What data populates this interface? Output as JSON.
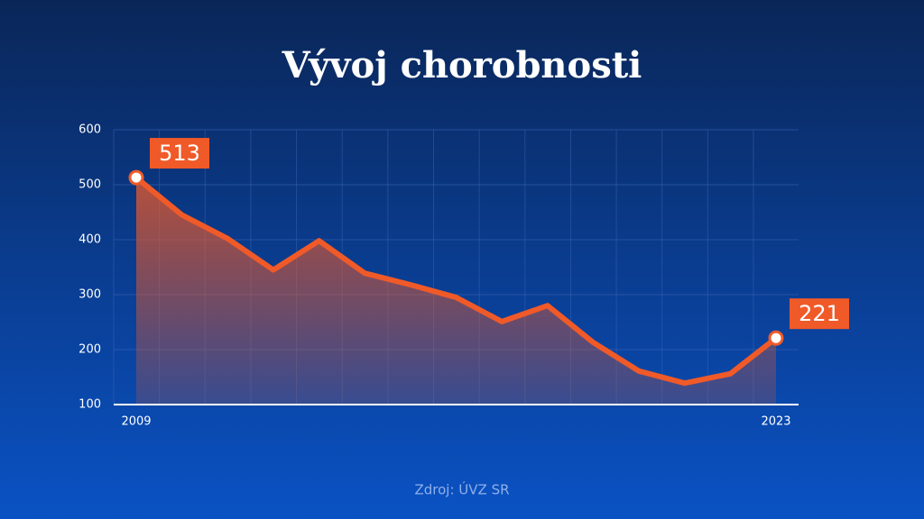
{
  "chart_data": {
    "type": "area",
    "title": "Vývoj chorobnosti",
    "source": "Zdroj: ÚVZ SR",
    "categories": [
      "2009",
      null,
      null,
      null,
      null,
      null,
      null,
      null,
      null,
      null,
      null,
      null,
      null,
      null,
      "2023"
    ],
    "values": [
      513,
      445,
      402,
      345,
      398,
      339,
      318,
      295,
      251,
      280,
      213,
      161,
      139,
      156,
      221
    ],
    "color": "#f05a28",
    "ylim": [
      100,
      600
    ],
    "yticks": [
      100,
      200,
      300,
      400,
      500,
      600
    ],
    "grid": true
  }
}
